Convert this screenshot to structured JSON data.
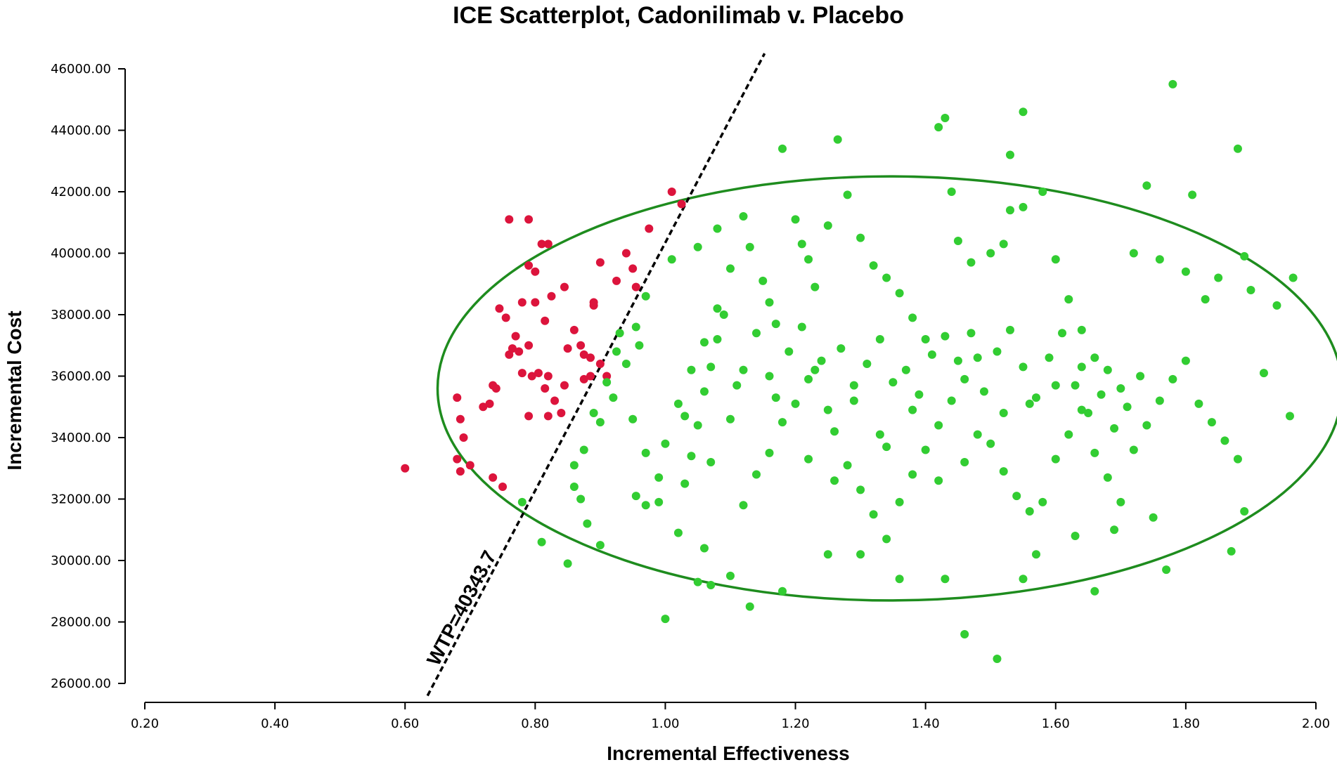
{
  "chart_data": {
    "type": "scatter",
    "title": "ICE Scatterplot, Cadonilimab v. Placebo",
    "xlabel": "Incremental Effectiveness",
    "ylabel": "Incremental Cost",
    "xlim": [
      0.2,
      2.0
    ],
    "ylim": [
      26000,
      46000
    ],
    "x_ticks": [
      "0.20",
      "0.40",
      "0.60",
      "0.80",
      "1.00",
      "1.20",
      "1.40",
      "1.60",
      "1.80",
      "2.00"
    ],
    "y_ticks": [
      "26000.00",
      "28000.00",
      "30000.00",
      "32000.00",
      "34000.00",
      "36000.00",
      "38000.00",
      "40000.00",
      "42000.00",
      "44000.00",
      "46000.00"
    ],
    "grid": false,
    "legend": "none",
    "wtp": {
      "label": "WTP=40343.7",
      "slope": 40343.7,
      "style": "dashed",
      "color": "#000000"
    },
    "confidence_ellipse": {
      "center": [
        1.345,
        35600
      ],
      "radius_x": 0.695,
      "radius_y": 6900,
      "color": "#1e8c1e"
    },
    "series": [
      {
        "color": "#dc143c",
        "points": [
          [
            0.6,
            33000
          ],
          [
            0.68,
            35300
          ],
          [
            0.685,
            34600
          ],
          [
            0.69,
            34000
          ],
          [
            0.68,
            33300
          ],
          [
            0.685,
            32900
          ],
          [
            0.7,
            33100
          ],
          [
            0.72,
            35000
          ],
          [
            0.73,
            35100
          ],
          [
            0.735,
            35700
          ],
          [
            0.74,
            35600
          ],
          [
            0.735,
            32700
          ],
          [
            0.75,
            32400
          ],
          [
            0.745,
            38200
          ],
          [
            0.755,
            37900
          ],
          [
            0.76,
            36700
          ],
          [
            0.765,
            36900
          ],
          [
            0.76,
            41100
          ],
          [
            0.79,
            41100
          ],
          [
            0.81,
            40300
          ],
          [
            0.82,
            40300
          ],
          [
            0.79,
            39600
          ],
          [
            0.8,
            39400
          ],
          [
            0.775,
            36800
          ],
          [
            0.77,
            37300
          ],
          [
            0.78,
            38400
          ],
          [
            0.8,
            38400
          ],
          [
            0.815,
            37800
          ],
          [
            0.825,
            38600
          ],
          [
            0.845,
            38900
          ],
          [
            0.79,
            37000
          ],
          [
            0.78,
            36100
          ],
          [
            0.795,
            36000
          ],
          [
            0.805,
            36100
          ],
          [
            0.82,
            36000
          ],
          [
            0.815,
            35600
          ],
          [
            0.83,
            35200
          ],
          [
            0.845,
            35700
          ],
          [
            0.85,
            36900
          ],
          [
            0.86,
            37500
          ],
          [
            0.87,
            37000
          ],
          [
            0.875,
            36700
          ],
          [
            0.885,
            36600
          ],
          [
            0.875,
            35900
          ],
          [
            0.885,
            36000
          ],
          [
            0.79,
            34700
          ],
          [
            0.82,
            34700
          ],
          [
            0.84,
            34800
          ],
          [
            0.89,
            38300
          ],
          [
            0.89,
            38400
          ],
          [
            0.9,
            39700
          ],
          [
            0.925,
            39100
          ],
          [
            0.94,
            40000
          ],
          [
            0.95,
            39500
          ],
          [
            0.955,
            38900
          ],
          [
            0.9,
            36400
          ],
          [
            0.91,
            36000
          ],
          [
            0.975,
            40800
          ],
          [
            1.01,
            42000
          ],
          [
            1.025,
            41600
          ]
        ]
      },
      {
        "color": "#32cd32",
        "points": [
          [
            0.78,
            31900
          ],
          [
            0.81,
            30600
          ],
          [
            0.85,
            29900
          ],
          [
            0.86,
            32400
          ],
          [
            0.87,
            32000
          ],
          [
            0.88,
            31200
          ],
          [
            0.9,
            30500
          ],
          [
            0.86,
            33100
          ],
          [
            0.875,
            33600
          ],
          [
            0.89,
            34800
          ],
          [
            0.9,
            34500
          ],
          [
            0.91,
            35800
          ],
          [
            0.92,
            35300
          ],
          [
            0.925,
            36800
          ],
          [
            0.93,
            37400
          ],
          [
            0.94,
            36400
          ],
          [
            0.955,
            37600
          ],
          [
            0.96,
            37000
          ],
          [
            0.97,
            38600
          ],
          [
            0.955,
            32100
          ],
          [
            0.97,
            31800
          ],
          [
            0.99,
            31900
          ],
          [
            1.0,
            28100
          ],
          [
            1.02,
            30900
          ],
          [
            1.03,
            32500
          ],
          [
            1.04,
            33400
          ],
          [
            1.05,
            34400
          ],
          [
            1.06,
            35500
          ],
          [
            1.07,
            36300
          ],
          [
            1.08,
            37200
          ],
          [
            1.09,
            38000
          ],
          [
            1.1,
            39500
          ],
          [
            1.12,
            41200
          ],
          [
            1.13,
            40200
          ],
          [
            1.15,
            39100
          ],
          [
            1.16,
            38400
          ],
          [
            1.17,
            37700
          ],
          [
            1.18,
            43400
          ],
          [
            1.2,
            41100
          ],
          [
            1.21,
            40300
          ],
          [
            1.22,
            39800
          ],
          [
            1.23,
            38900
          ],
          [
            1.25,
            40900
          ],
          [
            1.265,
            43700
          ],
          [
            1.28,
            41900
          ],
          [
            1.3,
            40500
          ],
          [
            1.32,
            39600
          ],
          [
            1.34,
            39200
          ],
          [
            1.36,
            38700
          ],
          [
            1.38,
            37900
          ],
          [
            1.4,
            37200
          ],
          [
            1.42,
            44100
          ],
          [
            1.43,
            44400
          ],
          [
            1.44,
            42000
          ],
          [
            1.45,
            40400
          ],
          [
            1.47,
            39700
          ],
          [
            1.5,
            40000
          ],
          [
            1.52,
            40300
          ],
          [
            1.53,
            41400
          ],
          [
            1.55,
            41500
          ],
          [
            1.53,
            43200
          ],
          [
            1.55,
            44600
          ],
          [
            1.58,
            42000
          ],
          [
            1.6,
            39800
          ],
          [
            1.62,
            38500
          ],
          [
            1.64,
            37500
          ],
          [
            1.66,
            36600
          ],
          [
            1.68,
            36200
          ],
          [
            1.7,
            35600
          ],
          [
            1.72,
            40000
          ],
          [
            1.74,
            42200
          ],
          [
            1.76,
            39800
          ],
          [
            1.78,
            45500
          ],
          [
            1.8,
            39400
          ],
          [
            1.81,
            41900
          ],
          [
            1.83,
            38500
          ],
          [
            1.85,
            39200
          ],
          [
            1.88,
            43400
          ],
          [
            1.89,
            39900
          ],
          [
            1.9,
            38800
          ],
          [
            1.92,
            36100
          ],
          [
            1.94,
            38300
          ],
          [
            1.96,
            34700
          ],
          [
            1.965,
            39200
          ],
          [
            1.89,
            31600
          ],
          [
            1.87,
            30300
          ],
          [
            1.77,
            29700
          ],
          [
            1.66,
            29000
          ],
          [
            1.55,
            29400
          ],
          [
            1.51,
            26800
          ],
          [
            1.46,
            27600
          ],
          [
            1.43,
            29400
          ],
          [
            1.36,
            29400
          ],
          [
            1.3,
            30200
          ],
          [
            1.25,
            30200
          ],
          [
            1.18,
            29000
          ],
          [
            1.13,
            28500
          ],
          [
            1.1,
            29500
          ],
          [
            1.07,
            29200
          ],
          [
            1.05,
            29300
          ],
          [
            1.06,
            30400
          ],
          [
            1.12,
            31800
          ],
          [
            1.14,
            32800
          ],
          [
            1.16,
            33500
          ],
          [
            1.18,
            34500
          ],
          [
            1.2,
            35100
          ],
          [
            1.22,
            35900
          ],
          [
            1.24,
            36500
          ],
          [
            1.26,
            34200
          ],
          [
            1.28,
            33100
          ],
          [
            1.3,
            32300
          ],
          [
            1.32,
            31500
          ],
          [
            1.34,
            30700
          ],
          [
            1.36,
            31900
          ],
          [
            1.38,
            32800
          ],
          [
            1.4,
            33600
          ],
          [
            1.42,
            34400
          ],
          [
            1.44,
            35200
          ],
          [
            1.46,
            35900
          ],
          [
            1.48,
            36600
          ],
          [
            1.5,
            33800
          ],
          [
            1.52,
            32900
          ],
          [
            1.54,
            32100
          ],
          [
            1.56,
            31600
          ],
          [
            1.58,
            31900
          ],
          [
            1.6,
            33300
          ],
          [
            1.62,
            34100
          ],
          [
            1.64,
            34900
          ],
          [
            1.66,
            33500
          ],
          [
            1.68,
            32700
          ],
          [
            1.7,
            31900
          ],
          [
            1.72,
            33600
          ],
          [
            1.74,
            34400
          ],
          [
            1.76,
            35200
          ],
          [
            1.78,
            35900
          ],
          [
            1.8,
            36500
          ],
          [
            1.82,
            35100
          ],
          [
            1.84,
            34500
          ],
          [
            1.86,
            33900
          ],
          [
            1.88,
            33300
          ],
          [
            1.75,
            31400
          ],
          [
            1.69,
            31000
          ],
          [
            1.63,
            30800
          ],
          [
            1.57,
            30200
          ],
          [
            1.0,
            33800
          ],
          [
            1.02,
            35100
          ],
          [
            1.04,
            36200
          ],
          [
            1.06,
            37100
          ],
          [
            1.08,
            38200
          ],
          [
            1.01,
            39800
          ],
          [
            1.05,
            40200
          ],
          [
            1.08,
            40800
          ],
          [
            1.1,
            34600
          ],
          [
            1.12,
            36200
          ],
          [
            1.14,
            37400
          ],
          [
            1.16,
            36000
          ],
          [
            1.19,
            36800
          ],
          [
            1.21,
            37600
          ],
          [
            1.23,
            36200
          ],
          [
            1.27,
            36900
          ],
          [
            1.29,
            35700
          ],
          [
            1.31,
            36400
          ],
          [
            1.33,
            37200
          ],
          [
            1.35,
            35800
          ],
          [
            1.37,
            36200
          ],
          [
            1.39,
            35400
          ],
          [
            1.41,
            36700
          ],
          [
            1.43,
            37300
          ],
          [
            1.45,
            36500
          ],
          [
            1.47,
            37400
          ],
          [
            1.49,
            35500
          ],
          [
            1.51,
            36800
          ],
          [
            1.53,
            37500
          ],
          [
            1.55,
            36300
          ],
          [
            1.57,
            35300
          ],
          [
            1.59,
            36600
          ],
          [
            1.61,
            37400
          ],
          [
            1.63,
            35700
          ],
          [
            1.65,
            34800
          ],
          [
            1.67,
            35400
          ],
          [
            1.69,
            34300
          ],
          [
            1.71,
            35000
          ],
          [
            1.73,
            36000
          ],
          [
            1.22,
            33300
          ],
          [
            1.26,
            32600
          ],
          [
            1.34,
            33700
          ],
          [
            1.38,
            34900
          ],
          [
            1.42,
            32600
          ],
          [
            1.46,
            33200
          ],
          [
            1.48,
            34100
          ],
          [
            1.52,
            34800
          ],
          [
            1.56,
            35100
          ],
          [
            1.6,
            35700
          ],
          [
            1.64,
            36300
          ],
          [
            1.33,
            34100
          ],
          [
            1.29,
            35200
          ],
          [
            1.25,
            34900
          ],
          [
            1.17,
            35300
          ],
          [
            1.11,
            35700
          ],
          [
            1.07,
            33200
          ],
          [
            1.03,
            34700
          ],
          [
            0.95,
            34600
          ],
          [
            0.97,
            33500
          ],
          [
            0.99,
            32700
          ]
        ]
      }
    ]
  }
}
